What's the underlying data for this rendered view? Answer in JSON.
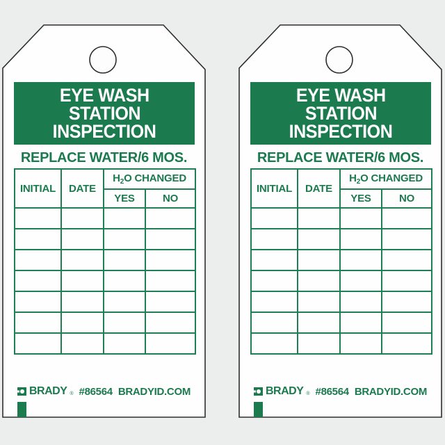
{
  "page": {
    "background_color": "#eceded",
    "tag_fill_color": "#fefefe",
    "tag_outline_color": "#2e2e2e",
    "brand_green": "#1c7a4f",
    "grid_line_green": "#1d7f53",
    "tag_count": 2
  },
  "tag": {
    "title_lines": [
      "EYE WASH",
      "STATION",
      "INSPECTION"
    ],
    "subtitle": "REPLACE WATER/6 MOS.",
    "table": {
      "initial_label": "INITIAL",
      "date_label": "DATE",
      "h2o": {
        "prefix": "H",
        "sub": "2",
        "suffix": "O CHANGED"
      },
      "yes_label": "YES",
      "no_label": "NO",
      "body_row_count": 7,
      "body_col_count": 4
    },
    "footer": {
      "brand": "BRADY",
      "registered": "®",
      "part_number": "#86564",
      "website": "BRADYID.COM"
    }
  }
}
